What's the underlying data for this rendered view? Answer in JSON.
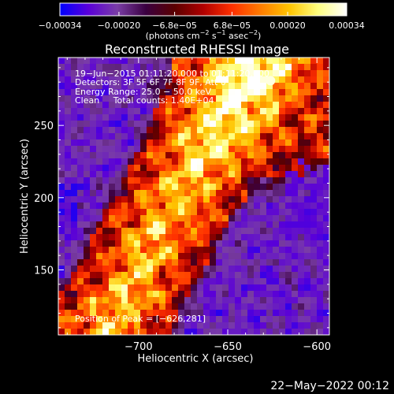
{
  "chart_data": {
    "type": "heatmap",
    "title": "Reconstructed RHESSI Image",
    "xlabel": "Heliocentric X (arcsec)",
    "ylabel": "Heliocentric Y (arcsec)",
    "xlim": [
      -745,
      -593
    ],
    "ylim": [
      105,
      297
    ],
    "x_ticks": [
      -700,
      -650,
      -600
    ],
    "x_tick_labels": [
      "−700",
      "−650",
      "−600"
    ],
    "y_ticks": [
      150,
      200,
      250
    ],
    "y_tick_labels": [
      "150",
      "200",
      "250"
    ],
    "colorbar": {
      "range": [
        -0.00034,
        0.00034
      ],
      "ticks": [
        -0.00034,
        -0.0002,
        -6.8e-05,
        6.8e-05,
        0.0002,
        0.00034
      ],
      "tick_labels": [
        "−0.00034",
        "−0.00020",
        "−6.8e−05",
        "6.8e−05",
        "0.00020",
        "0.00034"
      ],
      "units_parts": [
        "(photons cm",
        "−2",
        " s",
        "−1",
        " asec",
        "−2",
        ")"
      ],
      "colormap": [
        "#0000ff",
        "#5a00d8",
        "#7a3da6",
        "#3a0040",
        "#5a0000",
        "#b00000",
        "#ff3000",
        "#ff7c00",
        "#ffc400",
        "#ffff80",
        "#ffffff"
      ]
    },
    "annotations": [
      "19−Jun−2015 01:11:20.000 to 01:11:20.000",
      "Detectors: 3F 5F 6F 7F 8F 9F, Att 0",
      "Energy Range: 25.0 − 50.0 keV",
      "Clean     Total counts: 1.40E+04"
    ],
    "peak_label": "Position of Peak = [−626,281]",
    "peak": [
      -626,
      281
    ]
  },
  "footer": {
    "timestamp": "22−May−2022 00:12"
  }
}
